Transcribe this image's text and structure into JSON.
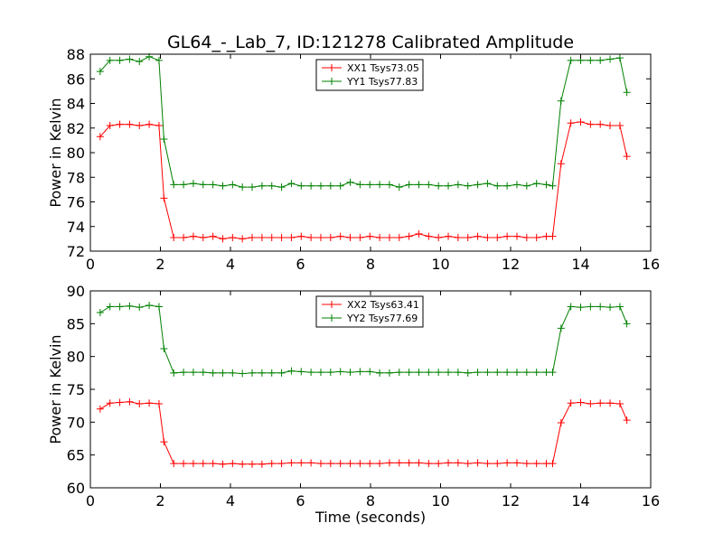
{
  "figure": {
    "title": "GL64_-_Lab_7, ID:121278 Calibrated Amplitude",
    "xlabel": "Time (seconds)"
  },
  "chart_data": [
    {
      "type": "line",
      "ylabel": "Power in Kelvin",
      "xlim": [
        0,
        16
      ],
      "ylim": [
        72,
        88
      ],
      "xticks": [
        "0",
        "2",
        "4",
        "6",
        "8",
        "10",
        "12",
        "14",
        "16"
      ],
      "yticks": [
        "72",
        "74",
        "76",
        "78",
        "80",
        "82",
        "84",
        "86",
        "88"
      ],
      "legend": "top-center",
      "series": [
        {
          "name": "XX1 Tsys73.05",
          "color": "#ff0000",
          "marker": "plus",
          "x": [
            0.28,
            0.56,
            0.84,
            1.12,
            1.4,
            1.68,
            1.96,
            2.1,
            2.38,
            2.66,
            2.94,
            3.22,
            3.5,
            3.78,
            4.06,
            4.34,
            4.62,
            4.9,
            5.18,
            5.46,
            5.74,
            6.02,
            6.3,
            6.58,
            6.86,
            7.14,
            7.42,
            7.7,
            7.98,
            8.26,
            8.54,
            8.82,
            9.1,
            9.38,
            9.66,
            9.94,
            10.22,
            10.5,
            10.78,
            11.06,
            11.34,
            11.62,
            11.9,
            12.18,
            12.46,
            12.74,
            13.02,
            13.2,
            13.44,
            13.72,
            14.0,
            14.28,
            14.56,
            14.84,
            15.12,
            15.32
          ],
          "y": [
            81.3,
            82.2,
            82.3,
            82.3,
            82.2,
            82.3,
            82.2,
            76.3,
            73.1,
            73.1,
            73.2,
            73.1,
            73.2,
            73.0,
            73.1,
            73.0,
            73.1,
            73.1,
            73.1,
            73.1,
            73.1,
            73.2,
            73.1,
            73.1,
            73.1,
            73.2,
            73.1,
            73.1,
            73.2,
            73.1,
            73.1,
            73.1,
            73.2,
            73.4,
            73.2,
            73.1,
            73.2,
            73.1,
            73.1,
            73.2,
            73.1,
            73.1,
            73.2,
            73.2,
            73.1,
            73.1,
            73.2,
            73.2,
            79.1,
            82.4,
            82.5,
            82.3,
            82.3,
            82.2,
            82.2,
            79.7
          ]
        },
        {
          "name": "YY1 Tsys77.83",
          "color": "#008000",
          "marker": "plus",
          "x": [
            0.28,
            0.56,
            0.84,
            1.12,
            1.4,
            1.68,
            1.96,
            2.1,
            2.38,
            2.66,
            2.94,
            3.22,
            3.5,
            3.78,
            4.06,
            4.34,
            4.62,
            4.9,
            5.18,
            5.46,
            5.74,
            6.02,
            6.3,
            6.58,
            6.86,
            7.14,
            7.42,
            7.7,
            7.98,
            8.26,
            8.54,
            8.82,
            9.1,
            9.38,
            9.66,
            9.94,
            10.22,
            10.5,
            10.78,
            11.06,
            11.34,
            11.62,
            11.9,
            12.18,
            12.46,
            12.74,
            13.02,
            13.2,
            13.44,
            13.72,
            14.0,
            14.28,
            14.56,
            14.84,
            15.12,
            15.32
          ],
          "y": [
            86.6,
            87.5,
            87.5,
            87.6,
            87.4,
            87.8,
            87.5,
            81.1,
            77.4,
            77.4,
            77.5,
            77.4,
            77.4,
            77.3,
            77.4,
            77.2,
            77.2,
            77.3,
            77.3,
            77.2,
            77.5,
            77.3,
            77.3,
            77.3,
            77.3,
            77.3,
            77.6,
            77.4,
            77.4,
            77.4,
            77.4,
            77.2,
            77.4,
            77.4,
            77.4,
            77.3,
            77.3,
            77.4,
            77.3,
            77.4,
            77.5,
            77.3,
            77.3,
            77.4,
            77.3,
            77.5,
            77.4,
            77.3,
            84.2,
            87.5,
            87.5,
            87.5,
            87.5,
            87.6,
            87.7,
            84.9
          ]
        }
      ]
    },
    {
      "type": "line",
      "ylabel": "Power in Kelvin",
      "xlim": [
        0,
        16
      ],
      "ylim": [
        60,
        90
      ],
      "xticks": [
        "0",
        "2",
        "4",
        "6",
        "8",
        "10",
        "12",
        "14",
        "16"
      ],
      "yticks": [
        "60",
        "65",
        "70",
        "75",
        "80",
        "85",
        "90"
      ],
      "legend": "top-center",
      "series": [
        {
          "name": "XX2 Tsys63.41",
          "color": "#ff0000",
          "marker": "plus",
          "x": [
            0.28,
            0.56,
            0.84,
            1.12,
            1.4,
            1.68,
            1.96,
            2.1,
            2.38,
            2.66,
            2.94,
            3.22,
            3.5,
            3.78,
            4.06,
            4.34,
            4.62,
            4.9,
            5.18,
            5.46,
            5.74,
            6.02,
            6.3,
            6.58,
            6.86,
            7.14,
            7.42,
            7.7,
            7.98,
            8.26,
            8.54,
            8.82,
            9.1,
            9.38,
            9.66,
            9.94,
            10.22,
            10.5,
            10.78,
            11.06,
            11.34,
            11.62,
            11.9,
            12.18,
            12.46,
            12.74,
            13.02,
            13.2,
            13.44,
            13.72,
            14.0,
            14.28,
            14.56,
            14.84,
            15.12,
            15.32
          ],
          "y": [
            72.0,
            72.9,
            73.0,
            73.1,
            72.8,
            72.9,
            72.8,
            67.0,
            63.7,
            63.7,
            63.7,
            63.7,
            63.7,
            63.6,
            63.7,
            63.6,
            63.6,
            63.6,
            63.7,
            63.7,
            63.8,
            63.8,
            63.8,
            63.7,
            63.7,
            63.7,
            63.7,
            63.7,
            63.7,
            63.7,
            63.8,
            63.8,
            63.8,
            63.8,
            63.7,
            63.7,
            63.8,
            63.8,
            63.7,
            63.8,
            63.7,
            63.7,
            63.8,
            63.8,
            63.7,
            63.7,
            63.7,
            63.7,
            69.9,
            72.9,
            73.0,
            72.8,
            72.9,
            72.9,
            72.8,
            70.3
          ]
        },
        {
          "name": "YY2 Tsys77.69",
          "color": "#008000",
          "marker": "plus",
          "x": [
            0.28,
            0.56,
            0.84,
            1.12,
            1.4,
            1.68,
            1.96,
            2.1,
            2.38,
            2.66,
            2.94,
            3.22,
            3.5,
            3.78,
            4.06,
            4.34,
            4.62,
            4.9,
            5.18,
            5.46,
            5.74,
            6.02,
            6.3,
            6.58,
            6.86,
            7.14,
            7.42,
            7.7,
            7.98,
            8.26,
            8.54,
            8.82,
            9.1,
            9.38,
            9.66,
            9.94,
            10.22,
            10.5,
            10.78,
            11.06,
            11.34,
            11.62,
            11.9,
            12.18,
            12.46,
            12.74,
            13.02,
            13.2,
            13.44,
            13.72,
            14.0,
            14.28,
            14.56,
            14.84,
            15.12,
            15.32
          ],
          "y": [
            86.7,
            87.6,
            87.6,
            87.7,
            87.5,
            87.8,
            87.6,
            81.2,
            77.5,
            77.6,
            77.6,
            77.6,
            77.5,
            77.5,
            77.5,
            77.4,
            77.5,
            77.5,
            77.5,
            77.5,
            77.8,
            77.7,
            77.6,
            77.6,
            77.6,
            77.7,
            77.6,
            77.7,
            77.7,
            77.5,
            77.5,
            77.6,
            77.6,
            77.6,
            77.6,
            77.6,
            77.6,
            77.6,
            77.5,
            77.6,
            77.6,
            77.6,
            77.6,
            77.6,
            77.6,
            77.6,
            77.6,
            77.6,
            84.3,
            87.6,
            87.5,
            87.6,
            87.6,
            87.5,
            87.6,
            85.0
          ]
        }
      ]
    }
  ]
}
